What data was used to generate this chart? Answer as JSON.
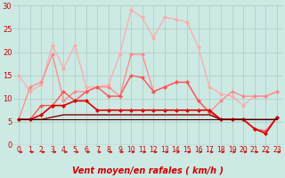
{
  "xlabel": "Vent moyen/en rafales ( km/h )",
  "background_color": "#cce9e4",
  "grid_color": "#b0c8c4",
  "xlim": [
    -0.5,
    23.5
  ],
  "ylim": [
    0,
    30
  ],
  "yticks": [
    0,
    5,
    10,
    15,
    20,
    25,
    30
  ],
  "xticks": [
    0,
    1,
    2,
    3,
    4,
    5,
    6,
    7,
    8,
    9,
    10,
    11,
    12,
    13,
    14,
    15,
    16,
    17,
    18,
    19,
    20,
    21,
    22,
    23
  ],
  "series": [
    {
      "color": "#ffaaaa",
      "lw": 0.9,
      "marker": "D",
      "markersize": 2.0,
      "values": [
        15.0,
        11.5,
        13.0,
        21.5,
        16.5,
        21.5,
        12.5,
        12.5,
        13.0,
        19.5,
        29.0,
        27.5,
        23.0,
        27.5,
        27.0,
        26.5,
        21.0,
        12.5,
        11.0,
        10.5,
        8.5,
        10.5,
        10.5,
        11.5
      ]
    },
    {
      "color": "#ff8888",
      "lw": 0.9,
      "marker": "D",
      "markersize": 2.0,
      "values": [
        5.5,
        12.5,
        13.5,
        19.5,
        9.5,
        11.5,
        11.5,
        12.5,
        12.5,
        10.5,
        19.5,
        19.5,
        11.5,
        12.5,
        13.5,
        13.5,
        9.5,
        7.0,
        9.5,
        11.5,
        10.5,
        10.5,
        10.5,
        11.5
      ]
    },
    {
      "color": "#ff5555",
      "lw": 1.0,
      "marker": "D",
      "markersize": 2.0,
      "values": [
        5.5,
        5.5,
        8.5,
        8.5,
        11.5,
        9.5,
        11.5,
        12.5,
        10.5,
        10.5,
        15.0,
        14.5,
        11.5,
        12.5,
        13.5,
        13.5,
        9.5,
        7.0,
        5.5,
        5.5,
        5.5,
        3.5,
        3.0,
        6.0
      ]
    },
    {
      "color": "#dd0000",
      "lw": 1.2,
      "marker": "D",
      "markersize": 2.0,
      "values": [
        5.5,
        5.5,
        6.5,
        8.5,
        8.5,
        9.5,
        9.5,
        7.5,
        7.5,
        7.5,
        7.5,
        7.5,
        7.5,
        7.5,
        7.5,
        7.5,
        7.5,
        7.5,
        5.5,
        5.5,
        5.5,
        3.5,
        2.5,
        6.0
      ]
    },
    {
      "color": "#880000",
      "lw": 1.0,
      "marker": null,
      "markersize": 0,
      "values": [
        5.5,
        5.5,
        5.5,
        6.0,
        6.5,
        6.5,
        6.5,
        6.5,
        6.5,
        6.5,
        6.5,
        6.5,
        6.5,
        6.5,
        6.5,
        6.5,
        6.5,
        6.5,
        5.5,
        5.5,
        5.5,
        5.5,
        5.5,
        5.5
      ]
    },
    {
      "color": "#440000",
      "lw": 0.8,
      "marker": null,
      "markersize": 0,
      "values": [
        5.5,
        5.5,
        5.5,
        5.5,
        5.5,
        5.5,
        5.5,
        5.5,
        5.5,
        5.5,
        5.5,
        5.5,
        5.5,
        5.5,
        5.5,
        5.5,
        5.5,
        5.5,
        5.5,
        5.5,
        5.5,
        5.5,
        5.5,
        5.5
      ]
    }
  ],
  "arrow_color": "#cc0000",
  "tick_color": "#cc0000",
  "xlabel_color": "#cc0000",
  "xlabel_fontsize": 7,
  "tick_fontsize": 5.5,
  "ytick_fontsize": 6
}
